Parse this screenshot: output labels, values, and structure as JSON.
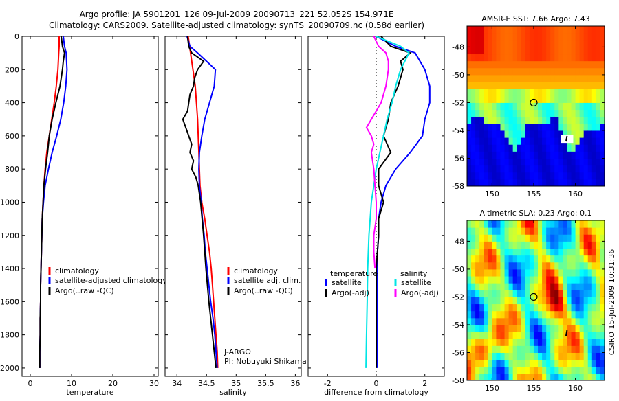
{
  "header": {
    "line1": "Argo profile: JA 5901201_126 09-Jul-2009 20090713_221 52.052S 154.971E",
    "line2": "Climatology: CARS2009. Satellite-adjusted climatology: synTS_20090709.nc (0.58d earlier)"
  },
  "colors": {
    "climatology": "#ff0000",
    "satellite": "#0000ff",
    "argo": "#000000",
    "sat_salinity": "#00e5e5",
    "argo_adj_salinity": "#ff00ff"
  },
  "chart_data": [
    {
      "type": "line",
      "xlabel": "temperature",
      "xlim": [
        -2,
        31
      ],
      "ylim": [
        0,
        2050
      ],
      "y_reversed": true,
      "xticks": [
        0,
        10,
        20,
        30
      ],
      "yticks": [
        0,
        200,
        400,
        600,
        800,
        1000,
        1200,
        1400,
        1600,
        1800,
        2000
      ],
      "legend": [
        "climatology",
        "satellite-adjusted climatology",
        "Argo(..raw -QC)"
      ],
      "series": [
        {
          "name": "climatology",
          "color": "#ff0000",
          "y": [
            0,
            60,
            100,
            200,
            300,
            400,
            500,
            600,
            700,
            800,
            900,
            1000,
            1100,
            1200,
            1300,
            1400,
            1500,
            1600,
            1700,
            1800,
            1900,
            2000
          ],
          "x": [
            7.0,
            7.0,
            6.9,
            6.7,
            6.3,
            5.8,
            5.2,
            4.6,
            4.0,
            3.6,
            3.3,
            3.1,
            2.9,
            2.8,
            2.7,
            2.6,
            2.5,
            2.5,
            2.4,
            2.4,
            2.3,
            2.3
          ]
        },
        {
          "name": "satellite-adjusted climatology",
          "color": "#0000ff",
          "y": [
            0,
            60,
            100,
            200,
            300,
            400,
            500,
            600,
            700,
            800,
            900,
            1000,
            1100,
            1200,
            1300,
            1400,
            1500,
            1600,
            1700,
            1800,
            1900,
            2000
          ],
          "x": [
            8.0,
            8.3,
            8.7,
            8.9,
            8.6,
            8.1,
            7.4,
            6.4,
            5.3,
            4.4,
            3.6,
            3.2,
            2.9,
            2.8,
            2.7,
            2.6,
            2.5,
            2.5,
            2.4,
            2.4,
            2.3,
            2.3
          ]
        },
        {
          "name": "Argo(..raw -QC)",
          "color": "#000000",
          "y": [
            0,
            60,
            100,
            150,
            200,
            300,
            400,
            500,
            600,
            700,
            800,
            900,
            1000,
            1100,
            1200,
            1300,
            1400,
            1500,
            1600,
            1700,
            1800,
            1900,
            2000
          ],
          "x": [
            7.5,
            7.8,
            8.3,
            8.0,
            7.8,
            7.2,
            6.2,
            5.3,
            4.6,
            4.2,
            3.7,
            3.3,
            3.1,
            2.9,
            2.8,
            2.7,
            2.6,
            2.5,
            2.5,
            2.4,
            2.4,
            2.3,
            2.3
          ]
        }
      ]
    },
    {
      "type": "line",
      "xlabel": "salinity",
      "xlim": [
        33.8,
        36.1
      ],
      "ylim": [
        0,
        2050
      ],
      "y_reversed": true,
      "xticks": [
        34,
        34.5,
        35,
        35.5,
        36
      ],
      "xtick_labels": [
        "34",
        "34.5",
        "35",
        "35.5",
        "36"
      ],
      "yticks": [
        0,
        200,
        400,
        600,
        800,
        1000,
        1200,
        1400,
        1600,
        1800,
        2000
      ],
      "legend": [
        "climatology",
        "satellite adj. clim.",
        "Argo(..raw -QC)"
      ],
      "annotations": [
        "J-ARGO",
        "PI: Nobuyuki Shikama"
      ],
      "series": [
        {
          "name": "climatology",
          "color": "#ff0000",
          "y": [
            0,
            100,
            200,
            300,
            400,
            500,
            600,
            700,
            800,
            900,
            1000,
            1100,
            1200,
            1300,
            1400,
            1500,
            1600,
            1700,
            1800,
            1900,
            2000
          ],
          "x": [
            34.19,
            34.23,
            34.27,
            34.31,
            34.33,
            34.35,
            34.36,
            34.37,
            34.38,
            34.39,
            34.42,
            34.47,
            34.51,
            34.55,
            34.58,
            34.6,
            34.62,
            34.64,
            34.66,
            34.68,
            34.69
          ]
        },
        {
          "name": "satellite adj. clim.",
          "color": "#0000ff",
          "y": [
            0,
            60,
            100,
            200,
            300,
            400,
            500,
            600,
            700,
            800,
            900,
            1000,
            1100,
            1200,
            1300,
            1400,
            1500,
            1600,
            1700,
            1800,
            1900,
            2000
          ],
          "x": [
            34.17,
            34.22,
            34.35,
            34.65,
            34.63,
            34.55,
            34.47,
            34.42,
            34.38,
            34.37,
            34.38,
            34.41,
            34.43,
            34.46,
            34.48,
            34.51,
            34.54,
            34.57,
            34.61,
            34.64,
            34.66,
            34.68
          ]
        },
        {
          "name": "Argo(..raw -QC)",
          "color": "#000000",
          "y": [
            0,
            60,
            100,
            150,
            200,
            250,
            300,
            350,
            400,
            450,
            500,
            550,
            600,
            650,
            700,
            750,
            800,
            850,
            900,
            1000,
            1200,
            1400,
            1600,
            1800,
            2000
          ],
          "x": [
            34.18,
            34.2,
            34.25,
            34.45,
            34.35,
            34.3,
            34.28,
            34.22,
            34.2,
            34.18,
            34.1,
            34.15,
            34.2,
            34.25,
            34.22,
            34.28,
            34.25,
            34.32,
            34.36,
            34.4,
            34.45,
            34.49,
            34.54,
            34.6,
            34.66
          ]
        }
      ]
    },
    {
      "type": "line",
      "xlabel": "difference from climatology",
      "xlim": [
        -2.8,
        2.8
      ],
      "ylim": [
        0,
        2050
      ],
      "y_reversed": true,
      "xticks": [
        -2,
        0,
        2
      ],
      "yticks": [
        0,
        200,
        400,
        600,
        800,
        1000,
        1200,
        1400,
        1600,
        1800,
        2000
      ],
      "zero_line": "dotted",
      "legend_titles": [
        "temperature",
        "salinity"
      ],
      "legend": [
        "satellite",
        "Argo(-adj)",
        "satellite",
        "Argo(-adj)"
      ],
      "series": [
        {
          "name": "temperature satellite",
          "color": "#0000ff",
          "y": [
            0,
            60,
            100,
            200,
            300,
            400,
            500,
            600,
            700,
            800,
            900,
            1000,
            1100,
            1200,
            1300,
            1400,
            1600,
            1800,
            2000
          ],
          "x": [
            0.0,
            0.8,
            1.6,
            2.0,
            2.2,
            2.2,
            2.0,
            1.9,
            1.4,
            0.8,
            0.4,
            0.2,
            0.1,
            0.1,
            0.05,
            0.05,
            0.05,
            0.05,
            0.05
          ]
        },
        {
          "name": "temperature Argo(-adj)",
          "color": "#000000",
          "y": [
            0,
            60,
            100,
            150,
            200,
            300,
            400,
            500,
            600,
            700,
            800,
            900,
            1000,
            1100,
            1200,
            1400,
            1600,
            1800,
            2000
          ],
          "x": [
            0.2,
            0.6,
            1.4,
            1.0,
            1.1,
            0.9,
            0.6,
            0.5,
            0.3,
            0.6,
            0.1,
            0.1,
            0.3,
            0.1,
            0.1,
            0.0,
            0.0,
            0.0,
            0.0
          ]
        },
        {
          "name": "salinity satellite",
          "color": "#00e5e5",
          "y": [
            0,
            60,
            100,
            200,
            300,
            400,
            500,
            600,
            700,
            800,
            900,
            1000,
            1100,
            1200,
            1400,
            1600,
            1800,
            2000
          ],
          "x": [
            0.0,
            1.0,
            1.35,
            1.0,
            0.8,
            0.65,
            0.45,
            0.3,
            0.15,
            0.0,
            -0.1,
            -0.2,
            -0.25,
            -0.3,
            -0.35,
            -0.37,
            -0.4,
            -0.42
          ]
        },
        {
          "name": "salinity Argo(-adj)",
          "color": "#ff00ff",
          "y": [
            0,
            60,
            100,
            150,
            200,
            300,
            400,
            500,
            550,
            600,
            650,
            700,
            800,
            900,
            1000,
            1100,
            1200,
            1300,
            1400
          ],
          "x": [
            -0.1,
            0.1,
            0.4,
            0.5,
            0.5,
            0.4,
            0.2,
            -0.2,
            -0.4,
            -0.2,
            -0.1,
            -0.2,
            -0.1,
            -0.05,
            0.0,
            0.0,
            -0.1,
            -0.1,
            -0.05
          ]
        }
      ]
    },
    {
      "type": "heatmap",
      "title": "AMSR-E SST: 7.66 Argo: 7.43",
      "xlim": [
        147,
        163.5
      ],
      "ylim": [
        -58,
        -46.5
      ],
      "xticks": [
        150,
        155,
        160
      ],
      "yticks": [
        -48,
        -50,
        -52,
        -54,
        -56,
        -58
      ],
      "argo_position": [
        155,
        -52
      ],
      "marker_position": [
        159,
        -54.6
      ]
    },
    {
      "type": "heatmap",
      "title": "Altimetric SLA: 0.23 Argo: 0.1",
      "xlim": [
        147,
        163.5
      ],
      "ylim": [
        -58,
        -46.5
      ],
      "xticks": [
        150,
        155,
        160
      ],
      "yticks": [
        -48,
        -50,
        -52,
        -54,
        -56,
        -58
      ],
      "argo_position": [
        155,
        -52
      ],
      "marker_position": [
        159,
        -54.6
      ],
      "side_label": "CSIRO 15-Jul-2009 10:31:36"
    }
  ]
}
